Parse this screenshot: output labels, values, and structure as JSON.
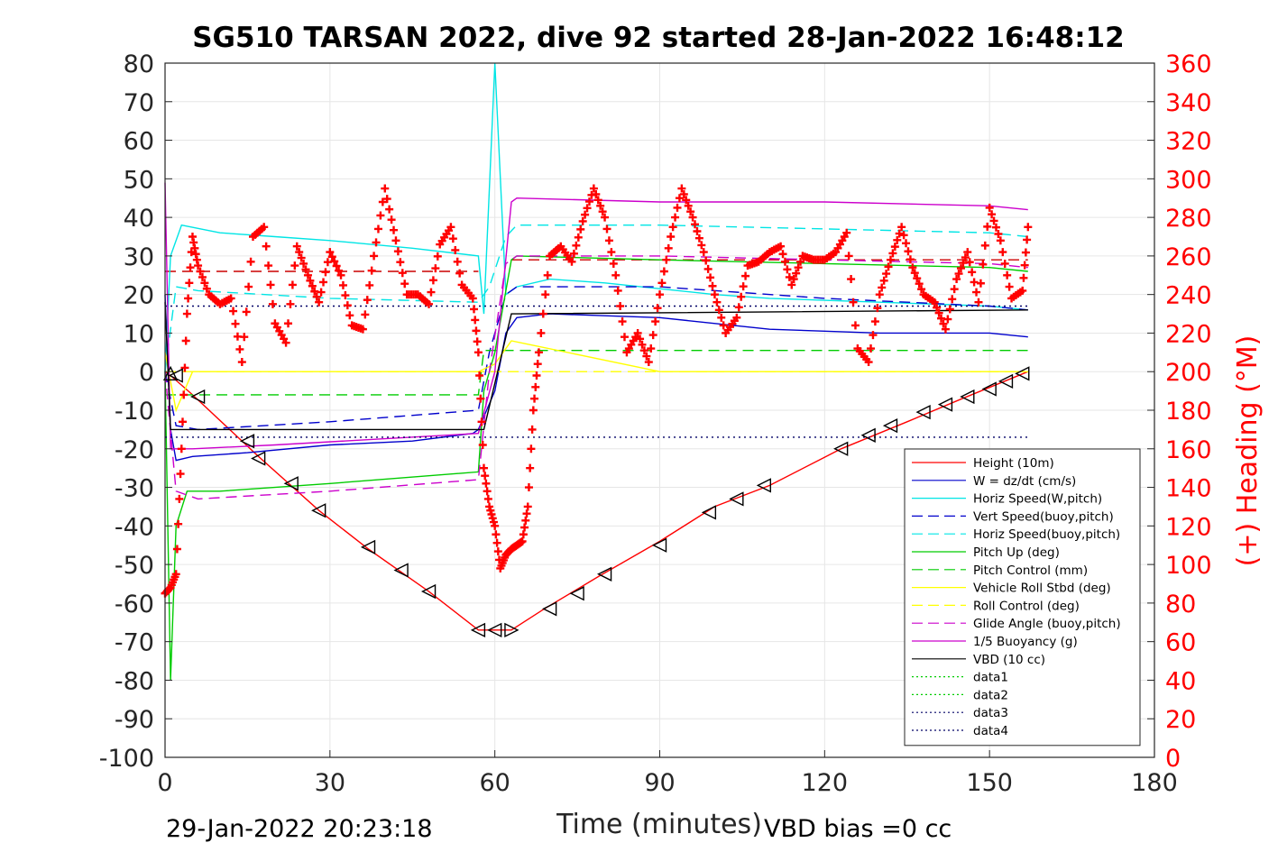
{
  "chart_data": {
    "type": "line",
    "title": "SG510 TARSAN 2022, dive 92 started 28-Jan-2022 16:48:12",
    "xlabel": "Time (minutes)",
    "ylabel": "",
    "y2label": "(+) Heading (°M)",
    "xlim": [
      0,
      180
    ],
    "ylim": [
      -100,
      80
    ],
    "y2lim": [
      0,
      360
    ],
    "xticks": [
      0,
      30,
      60,
      90,
      120,
      150,
      180
    ],
    "yticks": [
      80,
      70,
      60,
      50,
      40,
      30,
      20,
      10,
      0,
      -10,
      -20,
      -30,
      -40,
      -50,
      -60,
      -70,
      -80,
      -90,
      -100
    ],
    "y2ticks": [
      360,
      340,
      320,
      300,
      280,
      260,
      240,
      220,
      200,
      180,
      160,
      140,
      120,
      100,
      80,
      60,
      40,
      20,
      0
    ],
    "grid": true,
    "legend_position": "bottom-right",
    "footer_left": "29-Jan-2022 20:23:18",
    "footer_right": "VBD bias =0 cc",
    "series": [
      {
        "name": "Height (10m)",
        "color": "#ff0000",
        "style": "solid",
        "x": [
          0,
          1,
          5,
          17,
          28,
          37,
          48,
          57,
          63,
          69,
          79,
          90,
          100,
          110,
          123,
          135,
          145,
          157
        ],
        "y": [
          0,
          -1,
          -6,
          -22,
          -36,
          -46,
          -57,
          -67,
          -67,
          -61.5,
          -53,
          -44,
          -35,
          -29.5,
          -20,
          -13,
          -7,
          0
        ]
      },
      {
        "name": "W = dz/dt (cm/s)",
        "color": "#0000cc",
        "style": "solid",
        "x": [
          0,
          1,
          2,
          5,
          15,
          30,
          45,
          56,
          57,
          60,
          62,
          64,
          70,
          90,
          110,
          130,
          150,
          157
        ],
        "y": [
          20,
          -15,
          -23,
          -22,
          -21,
          -19,
          -18,
          -16,
          -15,
          -5,
          10,
          14,
          15,
          14,
          11,
          10,
          10,
          9
        ]
      },
      {
        "name": "Horiz Speed(W,pitch)",
        "color": "#00e5e5",
        "style": "solid",
        "x": [
          0,
          1,
          3,
          10,
          20,
          30,
          45,
          57,
          58,
          60,
          62,
          64,
          70,
          80,
          100,
          110,
          130,
          150,
          157
        ],
        "y": [
          0,
          30,
          38,
          36,
          35,
          34,
          32,
          30,
          15,
          80,
          20,
          22,
          24,
          23,
          20,
          19,
          18,
          17,
          16
        ]
      },
      {
        "name": "Vert Speed(buoy,pitch)",
        "color": "#0000cc",
        "style": "dashed",
        "x": [
          0,
          2,
          6,
          30,
          57,
          59,
          62,
          64,
          90,
          120,
          150,
          157
        ],
        "y": [
          0,
          -14,
          -15,
          -13,
          -10,
          5,
          20,
          22,
          22,
          19,
          17,
          16
        ]
      },
      {
        "name": "Horiz Speed(buoy,pitch)",
        "color": "#00e5e5",
        "style": "dashed",
        "x": [
          0,
          2,
          6,
          30,
          57,
          59,
          62,
          64,
          90,
          120,
          150,
          157
        ],
        "y": [
          0,
          22,
          21,
          19,
          18,
          22,
          35,
          38,
          38,
          37,
          36,
          35
        ]
      },
      {
        "name": "Pitch Up (deg)",
        "color": "#00cc00",
        "style": "solid",
        "x": [
          0,
          1,
          2,
          4,
          10,
          30,
          57,
          58,
          60,
          63,
          64,
          90,
          120,
          150,
          157
        ],
        "y": [
          0,
          -80,
          -40,
          -31,
          -31,
          -29,
          -26,
          -5,
          5,
          29,
          30,
          29,
          28,
          27,
          26
        ]
      },
      {
        "name": "Pitch Control (mm)",
        "color": "#00cc00",
        "style": "dashed",
        "x": [
          0,
          2,
          57,
          58,
          157
        ],
        "y": [
          -6,
          -6,
          -6,
          5.5,
          5.5
        ]
      },
      {
        "name": "Vehicle Roll Stbd (deg)",
        "color": "#ffff00",
        "style": "solid",
        "x": [
          0,
          2,
          5,
          20,
          40,
          57,
          60,
          63,
          90,
          120,
          150,
          157
        ],
        "y": [
          5,
          -10,
          0,
          0,
          0,
          0,
          2,
          8,
          0,
          0,
          0,
          0
        ]
      },
      {
        "name": "Roll Control (deg)",
        "color": "#ffff00",
        "style": "dashed",
        "x": [
          0,
          157
        ],
        "y": [
          0,
          0
        ]
      },
      {
        "name": "Glide Angle (buoy,pitch)",
        "color": "#cc00cc",
        "style": "dashed",
        "x": [
          0,
          2,
          6,
          30,
          57,
          59,
          62,
          64,
          90,
          120,
          150,
          157
        ],
        "y": [
          0,
          -31,
          -33,
          -31,
          -28,
          0,
          28,
          30,
          30,
          29,
          28,
          27
        ]
      },
      {
        "name": "1/5 Buoyancy (g)",
        "color": "#cc00cc",
        "style": "solid",
        "x": [
          0,
          1,
          5,
          20,
          57,
          60,
          63,
          64,
          90,
          120,
          150,
          157
        ],
        "y": [
          49,
          -20,
          -20,
          -19,
          -16,
          0,
          44,
          45,
          44,
          44,
          43,
          42
        ]
      },
      {
        "name": "VBD (10 cc)",
        "color": "#000000",
        "style": "solid",
        "x": [
          0,
          1,
          2,
          57,
          58,
          63,
          64,
          157
        ],
        "y": [
          18,
          -15,
          -15,
          -15,
          -15,
          15,
          15,
          16
        ]
      },
      {
        "name": "data1",
        "color": "#00cc00",
        "style": "dotted",
        "x": [
          0,
          0
        ],
        "y": [
          0,
          0
        ]
      },
      {
        "name": "data2",
        "color": "#00cc00",
        "style": "dotted",
        "x": [
          0,
          0
        ],
        "y": [
          0,
          0
        ]
      },
      {
        "name": "data3",
        "color": "#000066",
        "style": "dotted",
        "x": [
          0,
          157
        ],
        "y": [
          17,
          17
        ]
      },
      {
        "name": "data4",
        "color": "#000066",
        "style": "dotted",
        "x": [
          0,
          157
        ],
        "y": [
          -17,
          -17
        ]
      }
    ],
    "extra_lines": [
      {
        "color": "#cc0000",
        "style": "dashed",
        "x": [
          0,
          57
        ],
        "y": [
          26,
          26
        ]
      },
      {
        "color": "#cc0000",
        "style": "dashed",
        "x": [
          63,
          157
        ],
        "y": [
          29,
          29
        ]
      }
    ],
    "heading": {
      "color": "#ff0000",
      "marker": "+",
      "axis": "right",
      "x": [
        0,
        1,
        2,
        3,
        4,
        5,
        6,
        8,
        10,
        12,
        14,
        16,
        18,
        20,
        22,
        24,
        26,
        28,
        30,
        32,
        34,
        36,
        38,
        40,
        42,
        44,
        46,
        48,
        50,
        52,
        54,
        56,
        57,
        58,
        59,
        60,
        61,
        62,
        63,
        64,
        65,
        66,
        67,
        68,
        70,
        72,
        74,
        76,
        78,
        80,
        82,
        84,
        86,
        88,
        90,
        92,
        94,
        96,
        98,
        100,
        102,
        104,
        106,
        108,
        110,
        112,
        114,
        116,
        118,
        120,
        122,
        124,
        126,
        128,
        130,
        132,
        134,
        136,
        138,
        140,
        142,
        144,
        146,
        148,
        150,
        152,
        154,
        156,
        157
      ],
      "y": [
        85,
        88,
        95,
        160,
        230,
        270,
        255,
        240,
        235,
        238,
        205,
        270,
        275,
        225,
        215,
        265,
        250,
        236,
        262,
        250,
        224,
        222,
        260,
        295,
        268,
        240,
        240,
        235,
        266,
        275,
        245,
        238,
        210,
        150,
        130,
        120,
        98,
        105,
        108,
        110,
        112,
        130,
        180,
        210,
        260,
        265,
        257,
        278,
        295,
        280,
        250,
        210,
        220,
        205,
        240,
        270,
        295,
        280,
        262,
        240,
        220,
        228,
        255,
        257,
        262,
        265,
        245,
        260,
        258,
        258,
        262,
        272,
        212,
        205,
        240,
        258,
        275,
        254,
        240,
        236,
        222,
        248,
        262,
        236,
        285,
        268,
        238,
        242,
        275
      ]
    },
    "markers": {
      "color": "#000000",
      "points": [
        {
          "x": 1,
          "y": -0.5,
          "dir": "up"
        },
        {
          "x": 2,
          "y": -1,
          "dir": "left"
        },
        {
          "x": 6,
          "y": -6.5,
          "dir": "left"
        },
        {
          "x": 15,
          "y": -18,
          "dir": "left"
        },
        {
          "x": 17,
          "y": -22.5,
          "dir": "left"
        },
        {
          "x": 23,
          "y": -29,
          "dir": "left"
        },
        {
          "x": 28,
          "y": -36,
          "dir": "left"
        },
        {
          "x": 37,
          "y": -45.5,
          "dir": "left"
        },
        {
          "x": 43,
          "y": -51.5,
          "dir": "left"
        },
        {
          "x": 48,
          "y": -57,
          "dir": "left"
        },
        {
          "x": 57,
          "y": -67,
          "dir": "left"
        },
        {
          "x": 60,
          "y": -67,
          "dir": "left"
        },
        {
          "x": 63,
          "y": -67,
          "dir": "right"
        },
        {
          "x": 70,
          "y": -61.5,
          "dir": "left"
        },
        {
          "x": 75,
          "y": -57.5,
          "dir": "left"
        },
        {
          "x": 80,
          "y": -52.5,
          "dir": "left"
        },
        {
          "x": 90,
          "y": -45,
          "dir": "left"
        },
        {
          "x": 99,
          "y": -36.5,
          "dir": "left"
        },
        {
          "x": 104,
          "y": -33,
          "dir": "left"
        },
        {
          "x": 109,
          "y": -29.5,
          "dir": "left"
        },
        {
          "x": 123,
          "y": -20,
          "dir": "left"
        },
        {
          "x": 128,
          "y": -16.5,
          "dir": "left"
        },
        {
          "x": 132,
          "y": -14,
          "dir": "left"
        },
        {
          "x": 138,
          "y": -10.5,
          "dir": "left"
        },
        {
          "x": 142,
          "y": -8.5,
          "dir": "left"
        },
        {
          "x": 146,
          "y": -6.5,
          "dir": "left"
        },
        {
          "x": 150,
          "y": -4.5,
          "dir": "left"
        },
        {
          "x": 153,
          "y": -2.5,
          "dir": "left"
        },
        {
          "x": 156,
          "y": -0.5,
          "dir": "left"
        }
      ]
    }
  }
}
